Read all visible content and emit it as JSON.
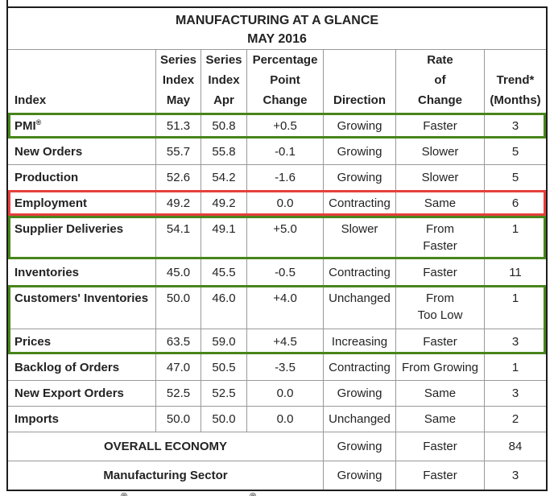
{
  "table": {
    "title": [
      "MANUFACTURING AT A GLANCE",
      "MAY 2016"
    ],
    "columns": [
      "Index",
      "Series\nIndex\nMay",
      "Series\nIndex\nApr",
      "Percentage\nPoint\nChange",
      "Direction",
      "Rate\nof\nChange",
      "Trend*\n(Months)"
    ],
    "colors": {
      "highlight_green": "#48851b",
      "highlight_red": "#e5403c",
      "grid_line": "#999999",
      "outer_border": "#1d1d1d"
    },
    "blocks": [
      {
        "type": "row",
        "hl": "green",
        "label": "PMI®",
        "may": "51.3",
        "apr": "50.8",
        "change": "+0.5",
        "direction": "Growing",
        "rate": "Faster",
        "trend": "3"
      },
      {
        "type": "row",
        "label": "New Orders",
        "may": "55.7",
        "apr": "55.8",
        "change": "-0.1",
        "direction": "Growing",
        "rate": "Slower",
        "trend": "5"
      },
      {
        "type": "row",
        "divider": true,
        "label": "Production",
        "may": "52.6",
        "apr": "54.2",
        "change": "-1.6",
        "direction": "Growing",
        "rate": "Slower",
        "trend": "5"
      },
      {
        "type": "row",
        "hl": "red",
        "label": "Employment",
        "may": "49.2",
        "apr": "49.2",
        "change": "0.0",
        "direction": "Contracting",
        "rate": "Same",
        "trend": "6"
      },
      {
        "type": "row",
        "hl": "green",
        "tall": true,
        "label": "Supplier Deliveries",
        "may": "54.1",
        "apr": "49.1",
        "change": "+5.0",
        "direction": "Slower",
        "rate": "From\nFaster",
        "trend": "1"
      },
      {
        "type": "row",
        "label": "Inventories",
        "may": "45.0",
        "apr": "45.5",
        "change": "-0.5",
        "direction": "Contracting",
        "rate": "Faster",
        "trend": "11"
      },
      {
        "type": "group",
        "hl": "green",
        "rows": [
          {
            "type": "row",
            "tall": true,
            "label": "Customers' Inventories",
            "may": "50.0",
            "apr": "46.0",
            "change": "+4.0",
            "direction": "Unchanged",
            "rate": "From\nToo Low",
            "trend": "1"
          },
          {
            "type": "row",
            "divider": true,
            "label": "Prices",
            "may": "63.5",
            "apr": "59.0",
            "change": "+4.5",
            "direction": "Increasing",
            "rate": "Faster",
            "trend": "3"
          }
        ]
      },
      {
        "type": "row",
        "label": "Backlog of Orders",
        "may": "47.0",
        "apr": "50.5",
        "change": "-3.5",
        "direction": "Contracting",
        "rate": "From Growing",
        "trend": "1"
      },
      {
        "type": "row",
        "divider": true,
        "label": "New Export Orders",
        "may": "52.5",
        "apr": "52.5",
        "change": "0.0",
        "direction": "Growing",
        "rate": "Same",
        "trend": "3"
      },
      {
        "type": "row",
        "divider": true,
        "label": "Imports",
        "may": "50.0",
        "apr": "50.0",
        "change": "0.0",
        "direction": "Unchanged",
        "rate": "Same",
        "trend": "2"
      },
      {
        "type": "summary",
        "divider": true,
        "label": "OVERALL ECONOMY",
        "direction": "Growing",
        "rate": "Faster",
        "trend": "84"
      },
      {
        "type": "summary",
        "divider": true,
        "label": "Manufacturing Sector",
        "direction": "Growing",
        "rate": "Faster",
        "trend": "3"
      }
    ],
    "footnote_marks": [
      "®",
      "®"
    ]
  }
}
